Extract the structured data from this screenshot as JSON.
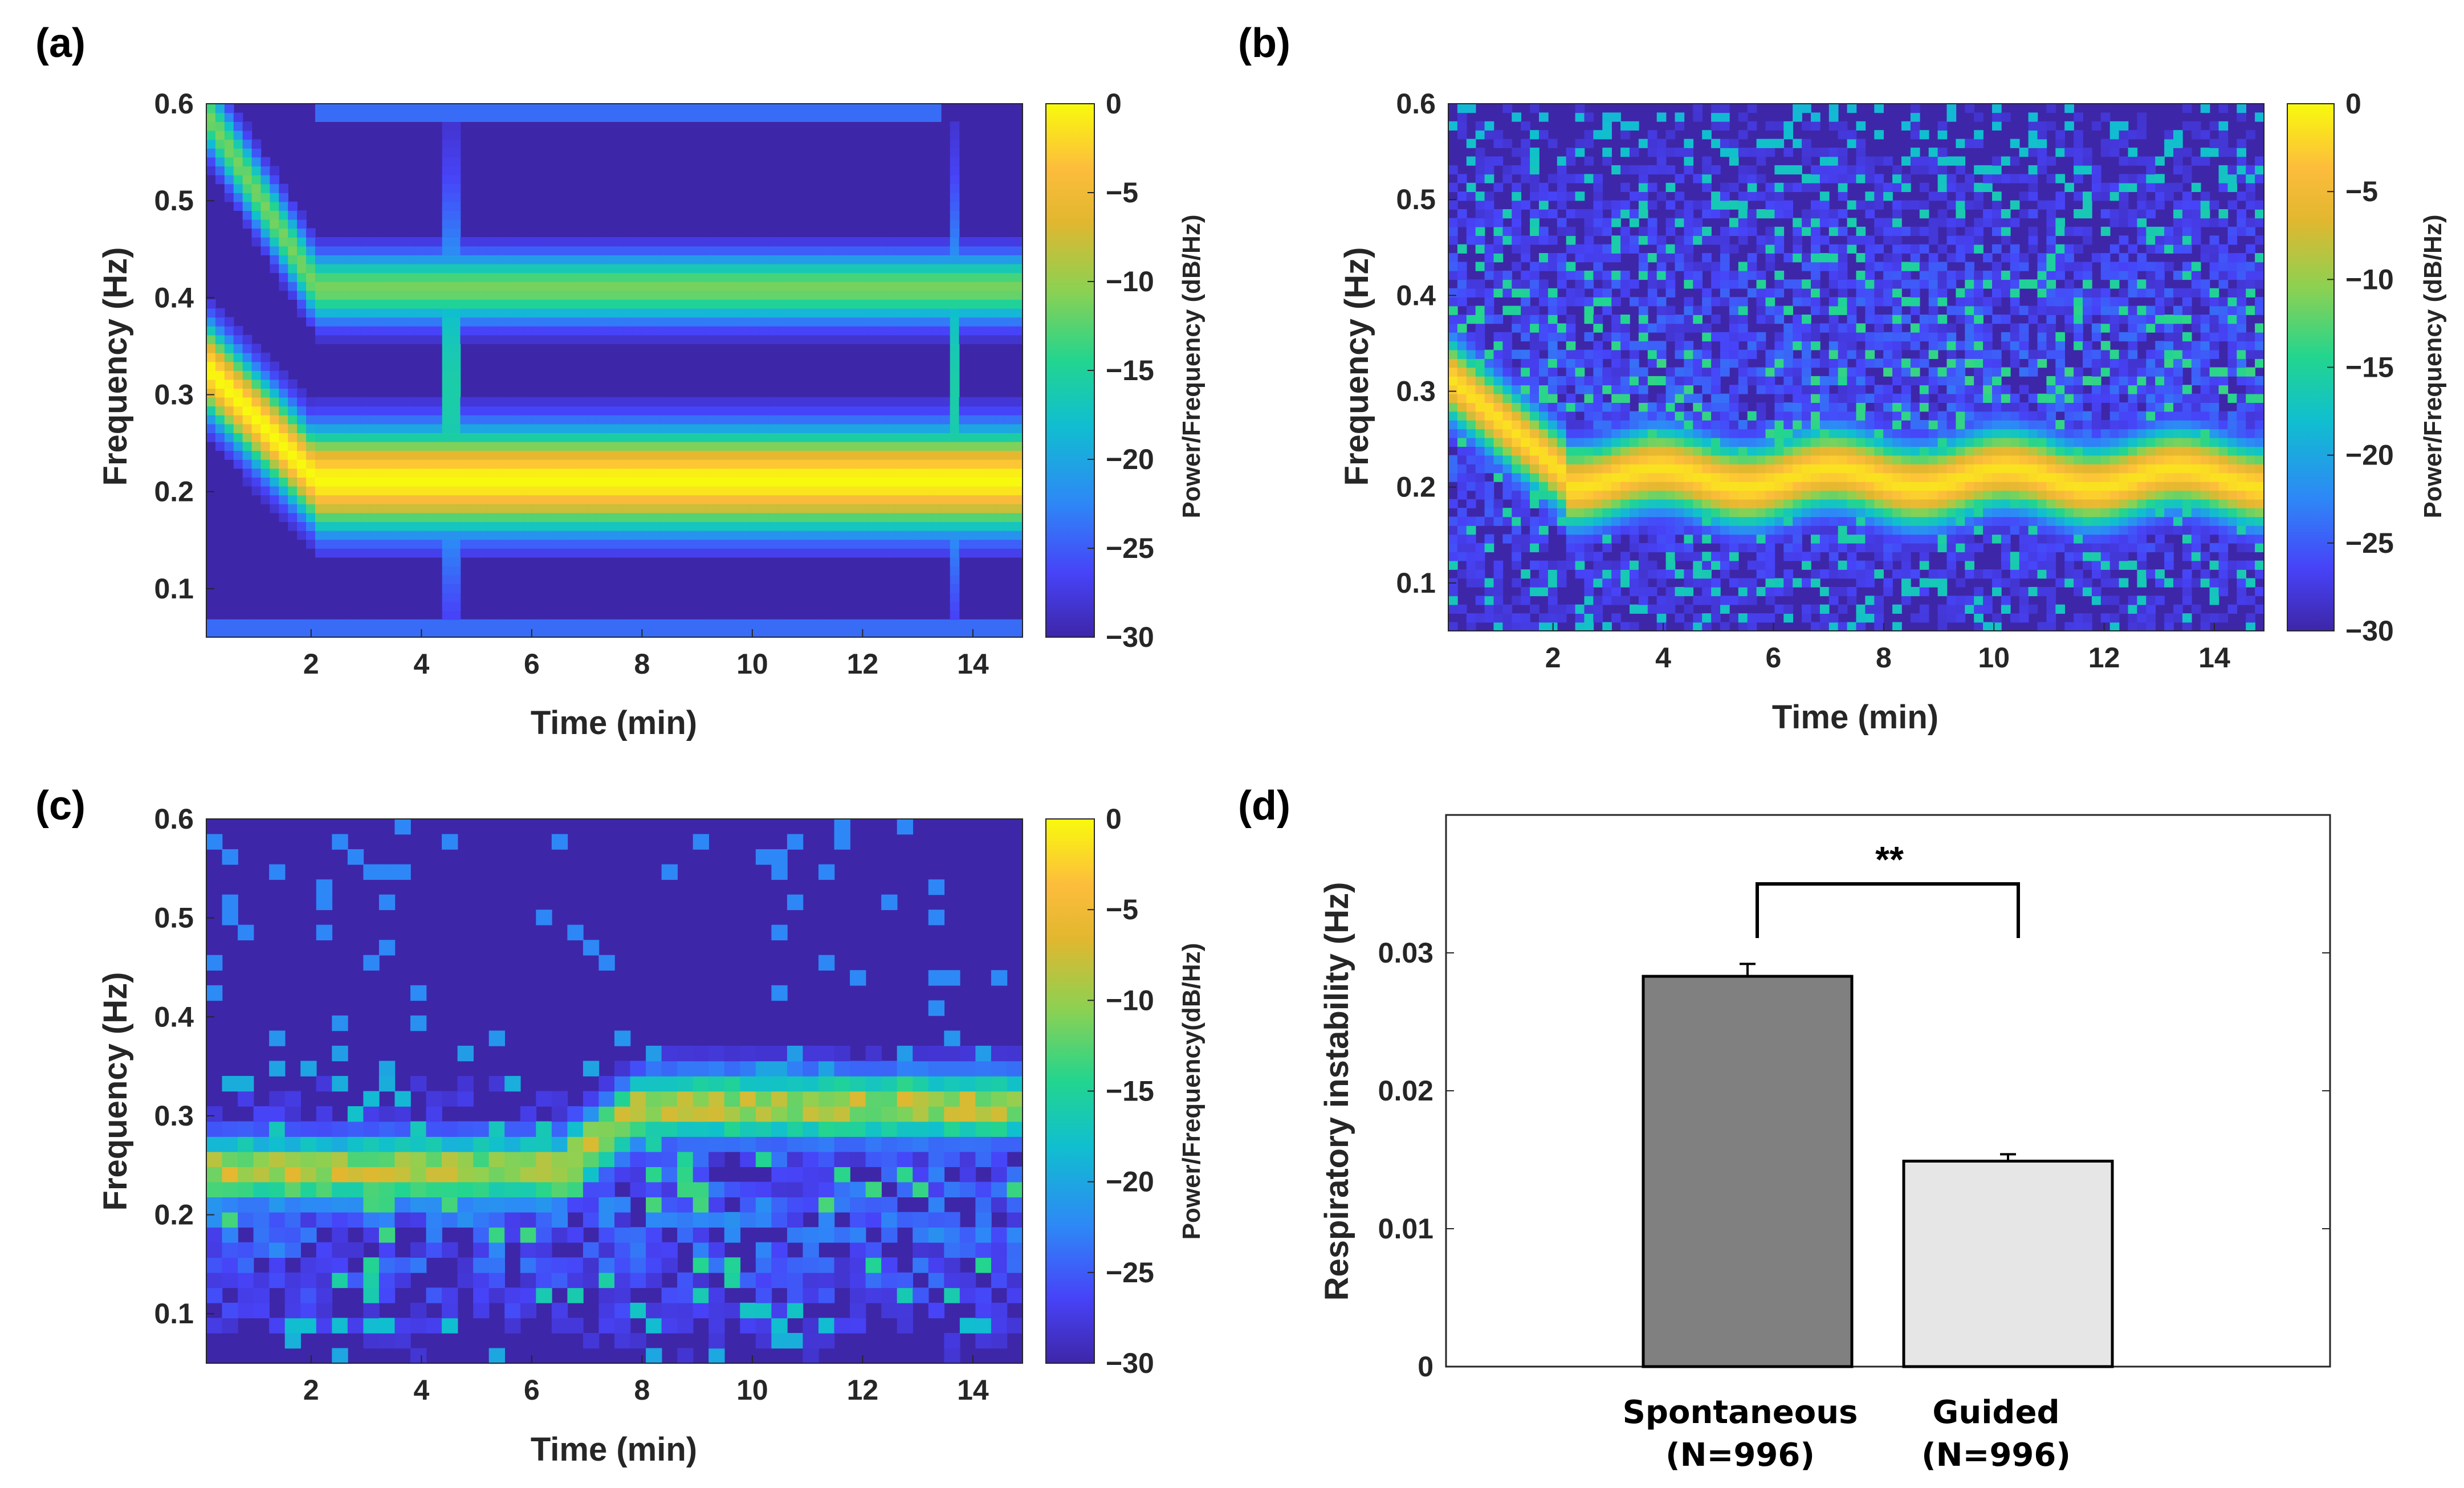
{
  "colormap": [
    "#3e26a8",
    "#4743f8",
    "#2e87f7",
    "#10bfcf",
    "#23d58e",
    "#8cd152",
    "#e2b72f",
    "#fdbd3c",
    "#f8fa0d"
  ],
  "panels": {
    "a": {
      "label": "(a)"
    },
    "b": {
      "label": "(b)"
    },
    "c": {
      "label": "(c)"
    },
    "d": {
      "label": "(d)"
    }
  },
  "chart_data": [
    {
      "id": "a",
      "type": "heatmap",
      "title": "",
      "xlabel": "Time (min)",
      "ylabel": "Frequency (Hz)",
      "xlim": [
        0.1,
        14.9
      ],
      "ylim": [
        0.05,
        0.6
      ],
      "xticks": [
        2,
        4,
        6,
        8,
        10,
        12,
        14
      ],
      "yticks": [
        0.1,
        0.2,
        0.3,
        0.4,
        0.5,
        0.6
      ],
      "colorbar": {
        "label": "Power/Frequency (dB/Hz)",
        "ticks": [
          0,
          -5,
          -10,
          -15,
          -20,
          -25,
          -30
        ],
        "range": [
          -30,
          0
        ]
      },
      "description_of_bands": "strong band descending from 0.33 Hz to 0.21 Hz over first 2 min then stable at 0.21 Hz; harmonic near 0.41 Hz; artifacts near 4.5 and 13.7 min"
    },
    {
      "id": "b",
      "type": "heatmap",
      "title": "",
      "xlabel": "Time (min)",
      "ylabel": "Frequency (Hz)",
      "xlim": [
        0.1,
        14.9
      ],
      "ylim": [
        0.05,
        0.6
      ],
      "xticks": [
        2,
        4,
        6,
        8,
        10,
        12,
        14
      ],
      "yticks": [
        0.1,
        0.2,
        0.3,
        0.4,
        0.5,
        0.6
      ],
      "colorbar": {
        "label": "Power/Frequency (dB/Hz)",
        "ticks": [
          0,
          -5,
          -10,
          -15,
          -20,
          -25,
          -30
        ],
        "range": [
          -30,
          0
        ]
      },
      "description_of_bands": "band descending from 0.32 Hz to 0.21 Hz then stable at about 0.21 Hz with noisy background"
    },
    {
      "id": "c",
      "type": "heatmap",
      "title": "",
      "xlabel": "Time (min)",
      "ylabel": "Frequency (Hz)",
      "xlim": [
        0.1,
        14.9
      ],
      "ylim": [
        0.05,
        0.6
      ],
      "xticks": [
        2,
        4,
        6,
        8,
        10,
        12,
        14
      ],
      "yticks": [
        0.1,
        0.2,
        0.3,
        0.4,
        0.5,
        0.6
      ],
      "colorbar": {
        "label": "Power/Frequency(dB/Hz)",
        "ticks": [
          0,
          -5,
          -10,
          -15,
          -20,
          -25,
          -30
        ],
        "range": [
          -30,
          0
        ]
      },
      "description_of_bands": "irregular band near 0.24 Hz rising to about 0.31 Hz after 7 min"
    },
    {
      "id": "d",
      "type": "bar",
      "title": "",
      "xlabel": "",
      "ylabel": "Respiratory instability (Hz)",
      "categories": [
        "Spontaneous",
        "Guided"
      ],
      "category_sublabels": [
        "(N=996)",
        "(N=996)"
      ],
      "values": [
        0.0283,
        0.0149
      ],
      "errors": [
        0.0009,
        0.0005
      ],
      "bar_colors": [
        "#808080",
        "#e6e6e6"
      ],
      "ylim": [
        0,
        0.04
      ],
      "yticks": [
        0,
        0.01,
        0.02,
        0.03
      ],
      "ytick_labels": [
        "0",
        "0.01",
        "0.02",
        "0.03"
      ],
      "significance": "**"
    }
  ]
}
